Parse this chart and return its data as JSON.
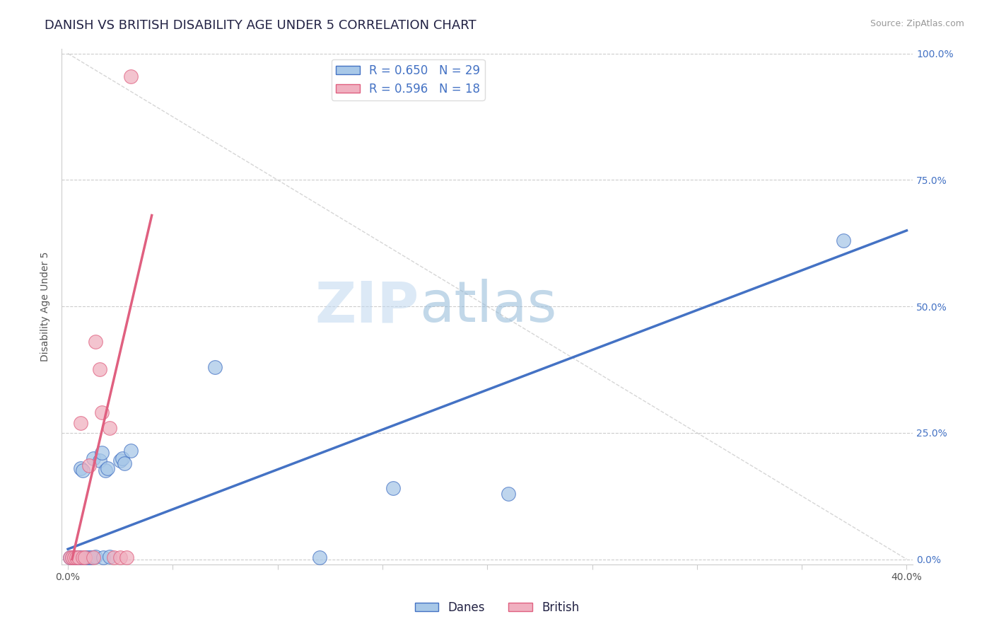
{
  "title": "DANISH VS BRITISH DISABILITY AGE UNDER 5 CORRELATION CHART",
  "source_text": "Source: ZipAtlas.com",
  "ylabel": "Disability Age Under 5",
  "watermark_zip": "ZIP",
  "watermark_atlas": "atlas",
  "xlim": [
    0.0,
    0.4
  ],
  "ylim": [
    0.0,
    1.0
  ],
  "xticks": [
    0.0,
    0.05,
    0.1,
    0.15,
    0.2,
    0.25,
    0.3,
    0.35,
    0.4
  ],
  "xtick_labels": [
    "0.0%",
    "",
    "",
    "",
    "",
    "",
    "",
    "",
    "40.0%"
  ],
  "ytick_labels_right": [
    "0.0%",
    "25.0%",
    "50.0%",
    "75.0%",
    "100.0%"
  ],
  "yticks_right": [
    0.0,
    0.25,
    0.5,
    0.75,
    1.0
  ],
  "danes_color": "#a8c8e8",
  "british_color": "#f0b0c0",
  "danes_line_color": "#4472c4",
  "british_line_color": "#e06080",
  "R_danes": 0.65,
  "N_danes": 29,
  "R_british": 0.596,
  "N_british": 18,
  "danes_x": [
    0.001,
    0.002,
    0.003,
    0.004,
    0.005,
    0.006,
    0.006,
    0.007,
    0.008,
    0.009,
    0.01,
    0.011,
    0.012,
    0.013,
    0.015,
    0.016,
    0.017,
    0.018,
    0.019,
    0.02,
    0.025,
    0.026,
    0.027,
    0.03,
    0.07,
    0.12,
    0.155,
    0.21,
    0.37
  ],
  "danes_y": [
    0.003,
    0.003,
    0.003,
    0.004,
    0.003,
    0.004,
    0.18,
    0.175,
    0.003,
    0.004,
    0.003,
    0.004,
    0.2,
    0.005,
    0.195,
    0.21,
    0.003,
    0.175,
    0.18,
    0.005,
    0.195,
    0.2,
    0.19,
    0.215,
    0.38,
    0.003,
    0.14,
    0.13,
    0.63
  ],
  "british_x": [
    0.001,
    0.002,
    0.003,
    0.004,
    0.005,
    0.006,
    0.007,
    0.008,
    0.01,
    0.012,
    0.013,
    0.015,
    0.016,
    0.02,
    0.022,
    0.025,
    0.028,
    0.03
  ],
  "british_y": [
    0.003,
    0.003,
    0.004,
    0.003,
    0.004,
    0.27,
    0.003,
    0.003,
    0.185,
    0.003,
    0.43,
    0.375,
    0.29,
    0.26,
    0.003,
    0.003,
    0.003,
    0.955
  ],
  "danes_line_x": [
    0.0,
    0.4
  ],
  "danes_line_y": [
    0.02,
    0.65
  ],
  "british_line_x": [
    0.002,
    0.04
  ],
  "british_line_y": [
    0.0,
    0.68
  ],
  "title_fontsize": 13,
  "label_fontsize": 10,
  "legend_fontsize": 12
}
